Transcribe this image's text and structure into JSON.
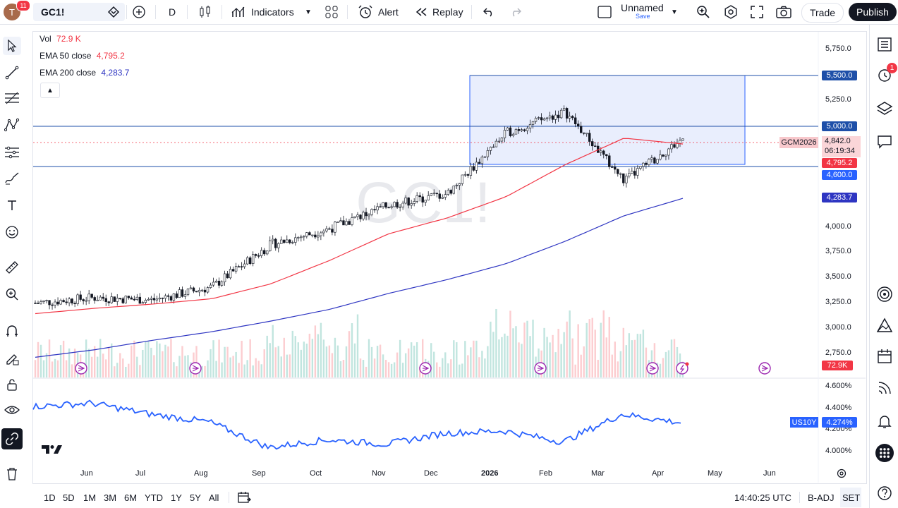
{
  "topbar": {
    "avatar_letter": "T",
    "notification_count": "11",
    "symbol": "GC1!",
    "interval": "D",
    "indicators_label": "Indicators",
    "alert_label": "Alert",
    "replay_label": "Replay",
    "layout_name": "Unnamed",
    "layout_status": "Save",
    "trade_label": "Trade",
    "publish_label": "Publish"
  },
  "legend": {
    "vol_label": "Vol",
    "vol_value": "72.9 K",
    "ema50_label": "EMA 50 close",
    "ema50_value": "4,795.2",
    "ema200_label": "EMA 200 close",
    "ema200_value": "4,283.7"
  },
  "watermark": "GC1!",
  "price_axis": [
    "5,750.0",
    "5,250.0",
    "4,000.0",
    "3,750.0",
    "3,500.0",
    "3,250.0",
    "3,000.0",
    "2,750.0"
  ],
  "price_labels": {
    "level_5500": "5,500.0",
    "level_5000": "5,000.0",
    "contract": "GCM2026",
    "last": "4,842.0",
    "countdown": "06:19:34",
    "ema50": "4,795.2",
    "level_4600": "4,600.0",
    "ema200": "4,283.7",
    "volume": "72.9K"
  },
  "lower_pane": {
    "axis": [
      "4.600%",
      "4.400%",
      "4.200%",
      "4.000%"
    ],
    "symbol_label": "US10Y",
    "value_label": "4.274%"
  },
  "time_axis": [
    "Jun",
    "Jul",
    "Aug",
    "Sep",
    "Oct",
    "Nov",
    "Dec",
    "2026",
    "Feb",
    "Mar",
    "Apr",
    "May",
    "Jun"
  ],
  "bottombar": {
    "ranges": [
      "1D",
      "5D",
      "1M",
      "3M",
      "6M",
      "YTD",
      "1Y",
      "5Y",
      "All"
    ],
    "clock": "14:40:25 UTC",
    "badj": "B-ADJ",
    "set": "SET"
  },
  "rightbar": {
    "alert_badge": "1"
  },
  "colors": {
    "ema50": "#f23645",
    "ema200": "#2e35c2",
    "us10y": "#2962ff",
    "up": "#089981",
    "down": "#f23645",
    "box_fill": "#e3eafc",
    "box_stroke": "#2962ff",
    "hline": "#1e4fa8"
  },
  "chart_data": {
    "type": "candlestick",
    "symbol": "GC1!",
    "price_range": [
      2600,
      5850
    ],
    "ohlc_monthly_approx": [
      {
        "x": "May",
        "close": 3300
      },
      {
        "x": "Jun",
        "close": 3350
      },
      {
        "x": "Jul",
        "close": 3330
      },
      {
        "x": "Aug",
        "close": 3450
      },
      {
        "x": "Sep",
        "close": 3850
      },
      {
        "x": "Oct",
        "close": 4000
      },
      {
        "x": "Nov",
        "close": 4220
      },
      {
        "x": "Dec",
        "close": 4330
      },
      {
        "x": "2026",
        "close": 4900
      },
      {
        "x": "Feb",
        "close": 5100
      },
      {
        "x": "Mar",
        "close": 4450
      },
      {
        "x": "Apr",
        "close": 4842
      }
    ],
    "series": [
      {
        "name": "EMA 50 close",
        "x": [
          "May",
          "Jun",
          "Jul",
          "Aug",
          "Sep",
          "Oct",
          "Nov",
          "Dec",
          "2026",
          "Feb",
          "Mar",
          "Apr"
        ],
        "values": [
          3200,
          3250,
          3290,
          3340,
          3480,
          3700,
          3950,
          4100,
          4300,
          4600,
          4850,
          4795
        ]
      },
      {
        "name": "EMA 200 close",
        "x": [
          "May",
          "Jun",
          "Jul",
          "Aug",
          "Sep",
          "Oct",
          "Nov",
          "Dec",
          "2026",
          "Feb",
          "Mar",
          "Apr"
        ],
        "values": [
          2790,
          2860,
          2950,
          3030,
          3130,
          3240,
          3390,
          3520,
          3670,
          3880,
          4120,
          4283.7
        ]
      }
    ],
    "us10y": {
      "name": "US10Y",
      "range": [
        3.95,
        4.65
      ],
      "x": [
        "May",
        "Jun",
        "Jul",
        "Aug",
        "Sep",
        "Oct",
        "Nov",
        "Dec",
        "2026",
        "Feb",
        "Mar",
        "Apr"
      ],
      "values": [
        4.42,
        4.45,
        4.35,
        4.28,
        4.05,
        4.12,
        4.08,
        4.18,
        4.2,
        4.1,
        4.35,
        4.274
      ]
    },
    "horizontal_levels": [
      5500,
      5000,
      4600
    ],
    "ylabel": ""
  }
}
